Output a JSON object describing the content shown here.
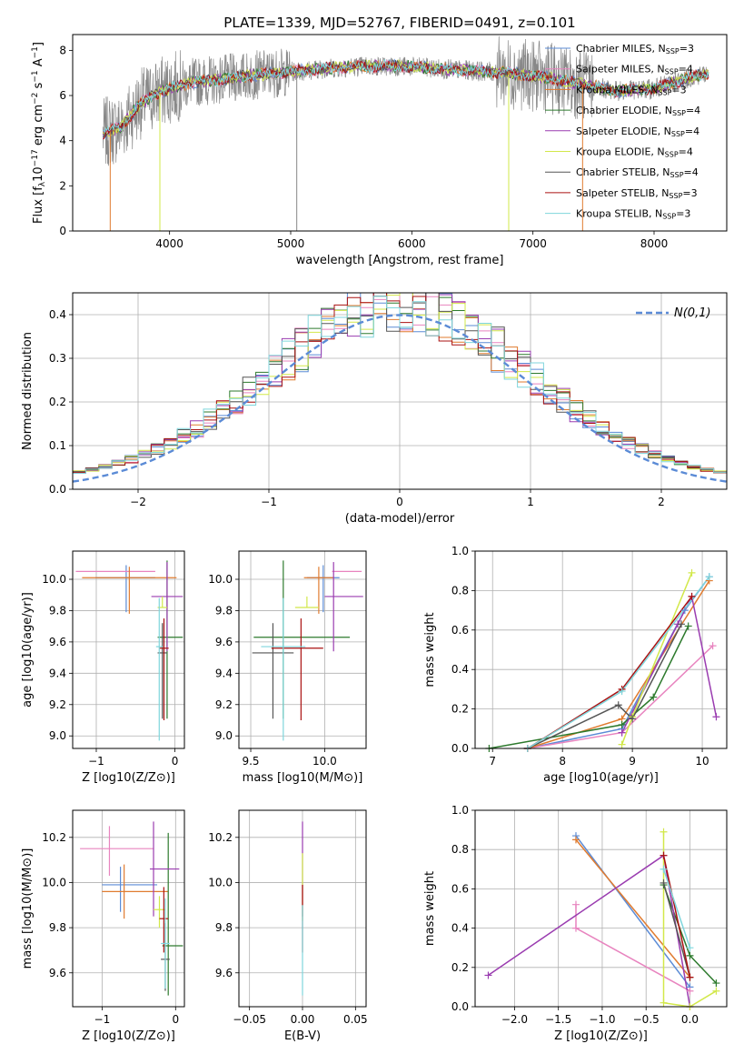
{
  "figure": {
    "title": "PLATE=1339, MJD=52767, FIBERID=0491, z=0.101"
  },
  "colors": {
    "Chabrier MILES": "#5b8bd6",
    "Salpeter MILES": "#e884bf",
    "Kroupa MILES": "#e07b2f",
    "Chabrier ELODIE": "#2d7a2d",
    "Salpeter ELODIE": "#9a3cb0",
    "Kroupa ELODIE": "#d2e84a",
    "Chabrier STELIB": "#555555",
    "Salpeter STELIB": "#aa1111",
    "Kroupa STELIB": "#7fd6dc",
    "gaussian": "#5b8bd6",
    "data": "#888888"
  },
  "chart_data": [
    {
      "id": "spectrum",
      "type": "line",
      "xlabel": "wavelength [Angstrom, rest frame]",
      "ylabel": "Flux [f_λ 10^-17 erg cm^-2 s^-1 A^-1]",
      "xlim": [
        3200,
        8600
      ],
      "ylim": [
        0,
        8.7
      ],
      "xticks": [
        "4000",
        "5000",
        "6000",
        "7000",
        "8000"
      ],
      "yticks": [
        "0",
        "2",
        "4",
        "6",
        "8"
      ],
      "legend_position": "right",
      "legend": [
        {
          "name": "Chabrier MILES",
          "nssp": "=3"
        },
        {
          "name": "Salpeter MILES",
          "nssp": "=4"
        },
        {
          "name": "Kroupa MILES",
          "nssp": "=3"
        },
        {
          "name": "Chabrier ELODIE",
          "nssp": "=4"
        },
        {
          "name": "Salpeter ELODIE",
          "nssp": "=4"
        },
        {
          "name": "Kroupa ELODIE",
          "nssp": "=4"
        },
        {
          "name": "Chabrier STELIB",
          "nssp": "=4"
        },
        {
          "name": "Salpeter STELIB",
          "nssp": "=3"
        },
        {
          "name": "Kroupa STELIB",
          "nssp": "=3"
        }
      ],
      "continuum": [
        [
          3450,
          4.3
        ],
        [
          3600,
          4.6
        ],
        [
          3750,
          5.6
        ],
        [
          3900,
          6.1
        ],
        [
          4050,
          6.4
        ],
        [
          4200,
          6.6
        ],
        [
          4400,
          6.7
        ],
        [
          4700,
          6.9
        ],
        [
          5000,
          7.05
        ],
        [
          5300,
          7.2
        ],
        [
          5600,
          7.3
        ],
        [
          5900,
          7.3
        ],
        [
          6200,
          7.2
        ],
        [
          6500,
          7.1
        ],
        [
          6800,
          7.0
        ],
        [
          7100,
          6.8
        ],
        [
          7400,
          6.5
        ],
        [
          7700,
          6.2
        ],
        [
          8000,
          6.3
        ],
        [
          8300,
          6.8
        ],
        [
          8450,
          7.0
        ]
      ]
    },
    {
      "id": "residuals",
      "type": "bar",
      "xlabel": "(data-model)/error",
      "ylabel": "Normed distribution",
      "xlim": [
        -2.5,
        2.5
      ],
      "ylim": [
        0,
        0.45
      ],
      "xticks": [
        "−2",
        "−1",
        "0",
        "1",
        "2"
      ],
      "yticks": [
        "0.0",
        "0.1",
        "0.2",
        "0.3",
        "0.4"
      ],
      "grid": true,
      "legend_position": "top-right",
      "gaussian_label": "N(0,1)",
      "bin_width": 0.1
    },
    {
      "id": "age_vs_Z",
      "type": "scatter",
      "xlabel": "Z [log10(Z/Z⊙)]",
      "ylabel": "age  [log10(age/yr)]",
      "xlim": [
        -1.3,
        0.12
      ],
      "ylim": [
        8.92,
        10.18
      ],
      "xticks": [
        "−1",
        "0"
      ],
      "yticks": [
        "9.0",
        "9.2",
        "9.4",
        "9.6",
        "9.8",
        "10.0"
      ],
      "grid": true,
      "points": [
        {
          "series": "Chabrier MILES",
          "x": -0.62,
          "xerr": [
            0.39,
            0.37
          ],
          "y": 10.01,
          "yerr": [
            0.22,
            0.08
          ]
        },
        {
          "series": "Salpeter MILES",
          "x": -0.58,
          "xerr": [
            0.68,
            0.33
          ],
          "y": 10.05,
          "yerr": [
            0.0,
            0.0
          ]
        },
        {
          "series": "Kroupa MILES",
          "x": -0.58,
          "xerr": [
            0.6,
            0.6
          ],
          "y": 10.01,
          "yerr": [
            0.23,
            0.07
          ]
        },
        {
          "series": "Chabrier ELODIE",
          "x": -0.1,
          "xerr": [
            0.12,
            0.2
          ],
          "y": 9.63,
          "yerr": [
            0.52,
            0.49
          ]
        },
        {
          "series": "Salpeter ELODIE",
          "x": -0.1,
          "xerr": [
            0.2,
            0.2
          ],
          "y": 9.89,
          "yerr": [
            0.35,
            0.22
          ]
        },
        {
          "series": "Kroupa ELODIE",
          "x": -0.16,
          "xerr": [
            0.06,
            0.06
          ],
          "y": 9.82,
          "yerr": [
            0.0,
            0.07
          ]
        },
        {
          "series": "Chabrier STELIB",
          "x": -0.16,
          "xerr": [
            0.06,
            0.06
          ],
          "y": 9.53,
          "yerr": [
            0.42,
            0.19
          ]
        },
        {
          "series": "Salpeter STELIB",
          "x": -0.14,
          "xerr": [
            0.06,
            0.06
          ],
          "y": 9.56,
          "yerr": [
            0.46,
            0.19
          ]
        },
        {
          "series": "Kroupa STELIB",
          "x": -0.2,
          "xerr": [
            0.04,
            0.04
          ],
          "y": 9.57,
          "yerr": [
            0.6,
            0.31
          ]
        }
      ]
    },
    {
      "id": "age_vs_mass",
      "type": "scatter",
      "xlabel": "mass [log10(M/M⊙)]",
      "ylabel": "",
      "xlim": [
        9.42,
        10.28
      ],
      "ylim": [
        8.92,
        10.18
      ],
      "xticks": [
        "9.5",
        "10.0"
      ],
      "yticks": [
        "9.0",
        "9.2",
        "9.4",
        "9.6",
        "9.8",
        "10.0"
      ],
      "grid": true,
      "points": [
        {
          "series": "Chabrier MILES",
          "x": 9.99,
          "xerr": [
            0.11,
            0.11
          ],
          "y": 10.01,
          "yerr": [
            0.22,
            0.08
          ]
        },
        {
          "series": "Salpeter MILES",
          "x": 10.15,
          "xerr": [
            0.1,
            0.1
          ],
          "y": 10.05,
          "yerr": [
            0.0,
            0.0
          ]
        },
        {
          "series": "Kroupa MILES",
          "x": 9.96,
          "xerr": [
            0.1,
            0.1
          ],
          "y": 10.01,
          "yerr": [
            0.23,
            0.07
          ]
        },
        {
          "series": "Chabrier ELODIE",
          "x": 9.72,
          "xerr": [
            0.2,
            0.45
          ],
          "y": 9.63,
          "yerr": [
            0.52,
            0.49
          ]
        },
        {
          "series": "Salpeter ELODIE",
          "x": 10.06,
          "xerr": [
            0.06,
            0.2
          ],
          "y": 9.89,
          "yerr": [
            0.35,
            0.22
          ]
        },
        {
          "series": "Kroupa ELODIE",
          "x": 9.88,
          "xerr": [
            0.08,
            0.08
          ],
          "y": 9.82,
          "yerr": [
            0.0,
            0.07
          ]
        },
        {
          "series": "Chabrier STELIB",
          "x": 9.65,
          "xerr": [
            0.14,
            0.14
          ],
          "y": 9.53,
          "yerr": [
            0.42,
            0.19
          ]
        },
        {
          "series": "Salpeter STELIB",
          "x": 9.84,
          "xerr": [
            0.2,
            0.15
          ],
          "y": 9.56,
          "yerr": [
            0.46,
            0.19
          ]
        },
        {
          "series": "Kroupa STELIB",
          "x": 9.72,
          "xerr": [
            0.15,
            0.15
          ],
          "y": 9.57,
          "yerr": [
            0.6,
            0.31
          ]
        }
      ]
    },
    {
      "id": "mass_weight_vs_age",
      "type": "line",
      "xlabel": "age  [log10(age/yr)]",
      "ylabel": "mass weight",
      "xlim": [
        6.75,
        10.35
      ],
      "ylim": [
        0,
        1.0
      ],
      "xticks": [
        "7",
        "8",
        "9",
        "10"
      ],
      "yticks": [
        "0.0",
        "0.2",
        "0.4",
        "0.6",
        "0.8",
        "1.0"
      ],
      "grid": true,
      "series": [
        {
          "name": "Chabrier MILES",
          "points": [
            [
              7.5,
              0
            ],
            [
              8.85,
              0.1
            ],
            [
              9.75,
              0.7
            ],
            [
              10.1,
              0.87
            ]
          ]
        },
        {
          "name": "Salpeter MILES",
          "points": [
            [
              7.5,
              0
            ],
            [
              8.85,
              0.08
            ],
            [
              10.15,
              0.52
            ]
          ]
        },
        {
          "name": "Kroupa MILES",
          "points": [
            [
              7.5,
              0
            ],
            [
              8.85,
              0.15
            ],
            [
              10.1,
              0.85
            ]
          ]
        },
        {
          "name": "Chabrier ELODIE",
          "points": [
            [
              6.95,
              0
            ],
            [
              8.85,
              0.12
            ],
            [
              9.3,
              0.26
            ],
            [
              9.8,
              0.62
            ]
          ]
        },
        {
          "name": "Salpeter ELODIE",
          "points": [
            [
              8.85,
              0.08
            ],
            [
              9.65,
              0.63
            ],
            [
              9.85,
              0.77
            ],
            [
              10.2,
              0.16
            ]
          ]
        },
        {
          "name": "Kroupa ELODIE",
          "points": [
            [
              8.85,
              0.02
            ],
            [
              9.0,
              0.16
            ],
            [
              9.85,
              0.89
            ]
          ]
        },
        {
          "name": "Chabrier STELIB",
          "points": [
            [
              7.5,
              0
            ],
            [
              8.8,
              0.22
            ],
            [
              9.0,
              0.15
            ],
            [
              9.7,
              0.63
            ]
          ]
        },
        {
          "name": "Salpeter STELIB",
          "points": [
            [
              7.5,
              0
            ],
            [
              8.85,
              0.3
            ],
            [
              9.85,
              0.77
            ]
          ]
        },
        {
          "name": "Kroupa STELIB",
          "points": [
            [
              7.5,
              0
            ],
            [
              8.85,
              0.29
            ],
            [
              10.1,
              0.87
            ]
          ]
        }
      ]
    },
    {
      "id": "mass_vs_Z",
      "type": "scatter",
      "xlabel": "Z [log10(Z/Z⊙)]",
      "ylabel": "mass [log10(M/M⊙)]",
      "xlim": [
        -1.4,
        0.12
      ],
      "ylim": [
        9.45,
        10.32
      ],
      "xticks": [
        "−1",
        "0"
      ],
      "yticks": [
        "9.6",
        "9.8",
        "10.0",
        "10.2"
      ],
      "grid": true,
      "points": [
        {
          "series": "Chabrier MILES",
          "x": -0.75,
          "xerr": [
            0.25,
            0.5
          ],
          "y": 9.99,
          "yerr": [
            0.12,
            0.08
          ]
        },
        {
          "series": "Salpeter MILES",
          "x": -0.9,
          "xerr": [
            0.4,
            0.6
          ],
          "y": 10.15,
          "yerr": [
            0.12,
            0.1
          ]
        },
        {
          "series": "Kroupa MILES",
          "x": -0.7,
          "xerr": [
            0.3,
            0.6
          ],
          "y": 9.96,
          "yerr": [
            0.12,
            0.12
          ]
        },
        {
          "series": "Chabrier ELODIE",
          "x": -0.1,
          "xerr": [
            0.08,
            0.2
          ],
          "y": 9.72,
          "yerr": [
            0.22,
            0.5
          ]
        },
        {
          "series": "Salpeter ELODIE",
          "x": -0.3,
          "xerr": [
            0.05,
            0.35
          ],
          "y": 10.06,
          "yerr": [
            0.21,
            0.21
          ]
        },
        {
          "series": "Kroupa ELODIE",
          "x": -0.22,
          "xerr": [
            0.08,
            0.08
          ],
          "y": 9.88,
          "yerr": [
            0.08,
            0.06
          ]
        },
        {
          "series": "Chabrier STELIB",
          "x": -0.14,
          "xerr": [
            0.06,
            0.06
          ],
          "y": 9.66,
          "yerr": [
            0.14,
            0.16
          ]
        },
        {
          "series": "Salpeter STELIB",
          "x": -0.16,
          "xerr": [
            0.06,
            0.06
          ],
          "y": 9.84,
          "yerr": [
            0.15,
            0.14
          ]
        },
        {
          "series": "Kroupa STELIB",
          "x": -0.14,
          "xerr": [
            0.06,
            0.06
          ],
          "y": 9.73,
          "yerr": [
            0.2,
            0.2
          ]
        }
      ]
    },
    {
      "id": "mass_vs_ebv",
      "type": "scatter",
      "xlabel": "E(B-V)",
      "ylabel": "",
      "xlim": [
        -0.06,
        0.06
      ],
      "ylim": [
        9.45,
        10.32
      ],
      "xticks": [
        "−0.05",
        "0.00",
        "0.05"
      ],
      "yticks": [
        "9.6",
        "9.8",
        "10.0",
        "10.2"
      ],
      "grid": true,
      "points": [
        {
          "series": "Salpeter ELODIE",
          "x": 0.0,
          "y": 10.06,
          "yerr": [
            0.21,
            0.21
          ]
        },
        {
          "series": "Kroupa ELODIE",
          "x": 0.0,
          "y": 9.98,
          "yerr": [
            0.15,
            0.15
          ]
        },
        {
          "series": "Salpeter STELIB",
          "x": 0.0,
          "y": 9.84,
          "yerr": [
            0.15,
            0.15
          ]
        },
        {
          "series": "Kroupa STELIB",
          "x": 0.0,
          "y": 9.7,
          "yerr": [
            0.2,
            0.2
          ]
        }
      ]
    },
    {
      "id": "mass_weight_vs_Z",
      "type": "line",
      "xlabel": "Z [log10(Z/Z⊙)]",
      "ylabel": "mass weight",
      "xlim": [
        -2.45,
        0.42
      ],
      "ylim": [
        0,
        1.0
      ],
      "xticks": [
        "−2.0",
        "−1.5",
        "−1.0",
        "−0.5",
        "0.0"
      ],
      "yticks": [
        "0.0",
        "0.2",
        "0.4",
        "0.6",
        "0.8",
        "1.0"
      ],
      "grid": true,
      "series": [
        {
          "name": "Chabrier MILES",
          "points": [
            [
              -1.3,
              0.87
            ],
            [
              0.0,
              0.1
            ]
          ]
        },
        {
          "name": "Salpeter MILES",
          "points": [
            [
              -1.3,
              0.52
            ],
            [
              -1.3,
              0.4
            ],
            [
              0.0,
              0.08
            ]
          ]
        },
        {
          "name": "Kroupa MILES",
          "points": [
            [
              -1.3,
              0.85
            ],
            [
              0.0,
              0.15
            ]
          ]
        },
        {
          "name": "Chabrier ELODIE",
          "points": [
            [
              -0.3,
              0.62
            ],
            [
              0.0,
              0.26
            ],
            [
              0.3,
              0.12
            ]
          ]
        },
        {
          "name": "Salpeter ELODIE",
          "points": [
            [
              -2.3,
              0.16
            ],
            [
              -0.3,
              0.77
            ],
            [
              0.0,
              0.0
            ]
          ]
        },
        {
          "name": "Kroupa ELODIE",
          "points": [
            [
              -0.3,
              0.89
            ],
            [
              -0.3,
              0.02
            ],
            [
              0.0,
              0.0
            ],
            [
              0.3,
              0.08
            ]
          ]
        },
        {
          "name": "Chabrier STELIB",
          "points": [
            [
              -0.3,
              0.63
            ],
            [
              0.0,
              0.15
            ]
          ]
        },
        {
          "name": "Salpeter STELIB",
          "points": [
            [
              -0.3,
              0.77
            ],
            [
              0.0,
              0.15
            ]
          ]
        },
        {
          "name": "Kroupa STELIB",
          "points": [
            [
              -0.3,
              0.7
            ],
            [
              0.0,
              0.3
            ]
          ]
        }
      ]
    }
  ]
}
